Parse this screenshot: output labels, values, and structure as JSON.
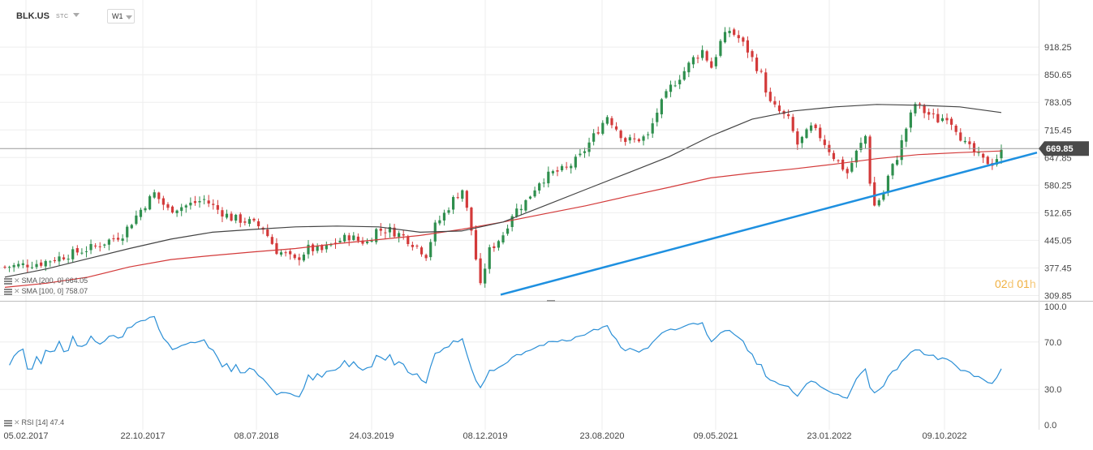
{
  "header": {
    "symbol": "BLK.US",
    "instrument_type": "STC",
    "interval": "W1",
    "dropdown_icon": "chevron-down-icon"
  },
  "indicators": {
    "sma200": {
      "label": "SMA [200, 0] 664.05",
      "color": "#d33a3a"
    },
    "sma100": {
      "label": "SMA [100, 0] 758.07",
      "color": "#444444"
    },
    "rsi": {
      "label": "RSI [14] 47.4",
      "color": "#2b8fd6"
    }
  },
  "countdown": {
    "days": "02",
    "days_unit": "d",
    "hours": "01",
    "hours_unit": "h"
  },
  "colors": {
    "up": "#2f8f4e",
    "down": "#d33a3a",
    "trendline": "#1e90e0",
    "last_price_badge": "#4a4a4a"
  },
  "chart_data": {
    "type": "candlestick",
    "price_axis": {
      "ticks": [
        "918.25",
        "850.65",
        "783.05",
        "715.45",
        "647.85",
        "580.25",
        "512.65",
        "445.05",
        "377.45",
        "309.85"
      ],
      "range": [
        295,
        990
      ]
    },
    "last_price": "669.85",
    "time_axis": {
      "ticks": [
        "05.02.2017",
        "22.10.2017",
        "08.07.2018",
        "24.03.2019",
        "08.12.2019",
        "23.08.2020",
        "09.05.2021",
        "23.01.2022",
        "09.10.2022"
      ]
    },
    "series": [
      {
        "name": "SMA [200, 0]",
        "points": [
          [
            0,
            330
          ],
          [
            7,
            340
          ],
          [
            14,
            355
          ],
          [
            21,
            380
          ],
          [
            28,
            398
          ],
          [
            35,
            408
          ],
          [
            42,
            417
          ],
          [
            49,
            425
          ],
          [
            56,
            437
          ],
          [
            63,
            447
          ],
          [
            70,
            457
          ],
          [
            77,
            472
          ],
          [
            84,
            490
          ],
          [
            91,
            510
          ],
          [
            98,
            530
          ],
          [
            105,
            553
          ],
          [
            112,
            575
          ],
          [
            119,
            598
          ],
          [
            126,
            610
          ],
          [
            133,
            620
          ],
          [
            140,
            632
          ],
          [
            147,
            645
          ],
          [
            154,
            655
          ],
          [
            161,
            660
          ],
          [
            168,
            664
          ]
        ]
      },
      {
        "name": "SMA [100, 0]",
        "points": [
          [
            0,
            355
          ],
          [
            7,
            375
          ],
          [
            14,
            400
          ],
          [
            21,
            425
          ],
          [
            28,
            448
          ],
          [
            35,
            465
          ],
          [
            42,
            472
          ],
          [
            49,
            478
          ],
          [
            56,
            480
          ],
          [
            63,
            478
          ],
          [
            70,
            465
          ],
          [
            77,
            468
          ],
          [
            84,
            490
          ],
          [
            91,
            530
          ],
          [
            98,
            570
          ],
          [
            105,
            610
          ],
          [
            112,
            650
          ],
          [
            119,
            700
          ],
          [
            126,
            742
          ],
          [
            133,
            762
          ],
          [
            140,
            772
          ],
          [
            147,
            778
          ],
          [
            154,
            776
          ],
          [
            161,
            772
          ],
          [
            168,
            758
          ]
        ]
      }
    ],
    "rsi_axis": {
      "ticks": [
        "100.0",
        "70.0",
        "30.0",
        "0.0"
      ],
      "range": [
        0,
        100
      ]
    },
    "rsi_last": 47.4,
    "trendline": {
      "from": [
        "08.12.2019",
        312
      ],
      "to": [
        "after last bar",
        660
      ]
    }
  }
}
